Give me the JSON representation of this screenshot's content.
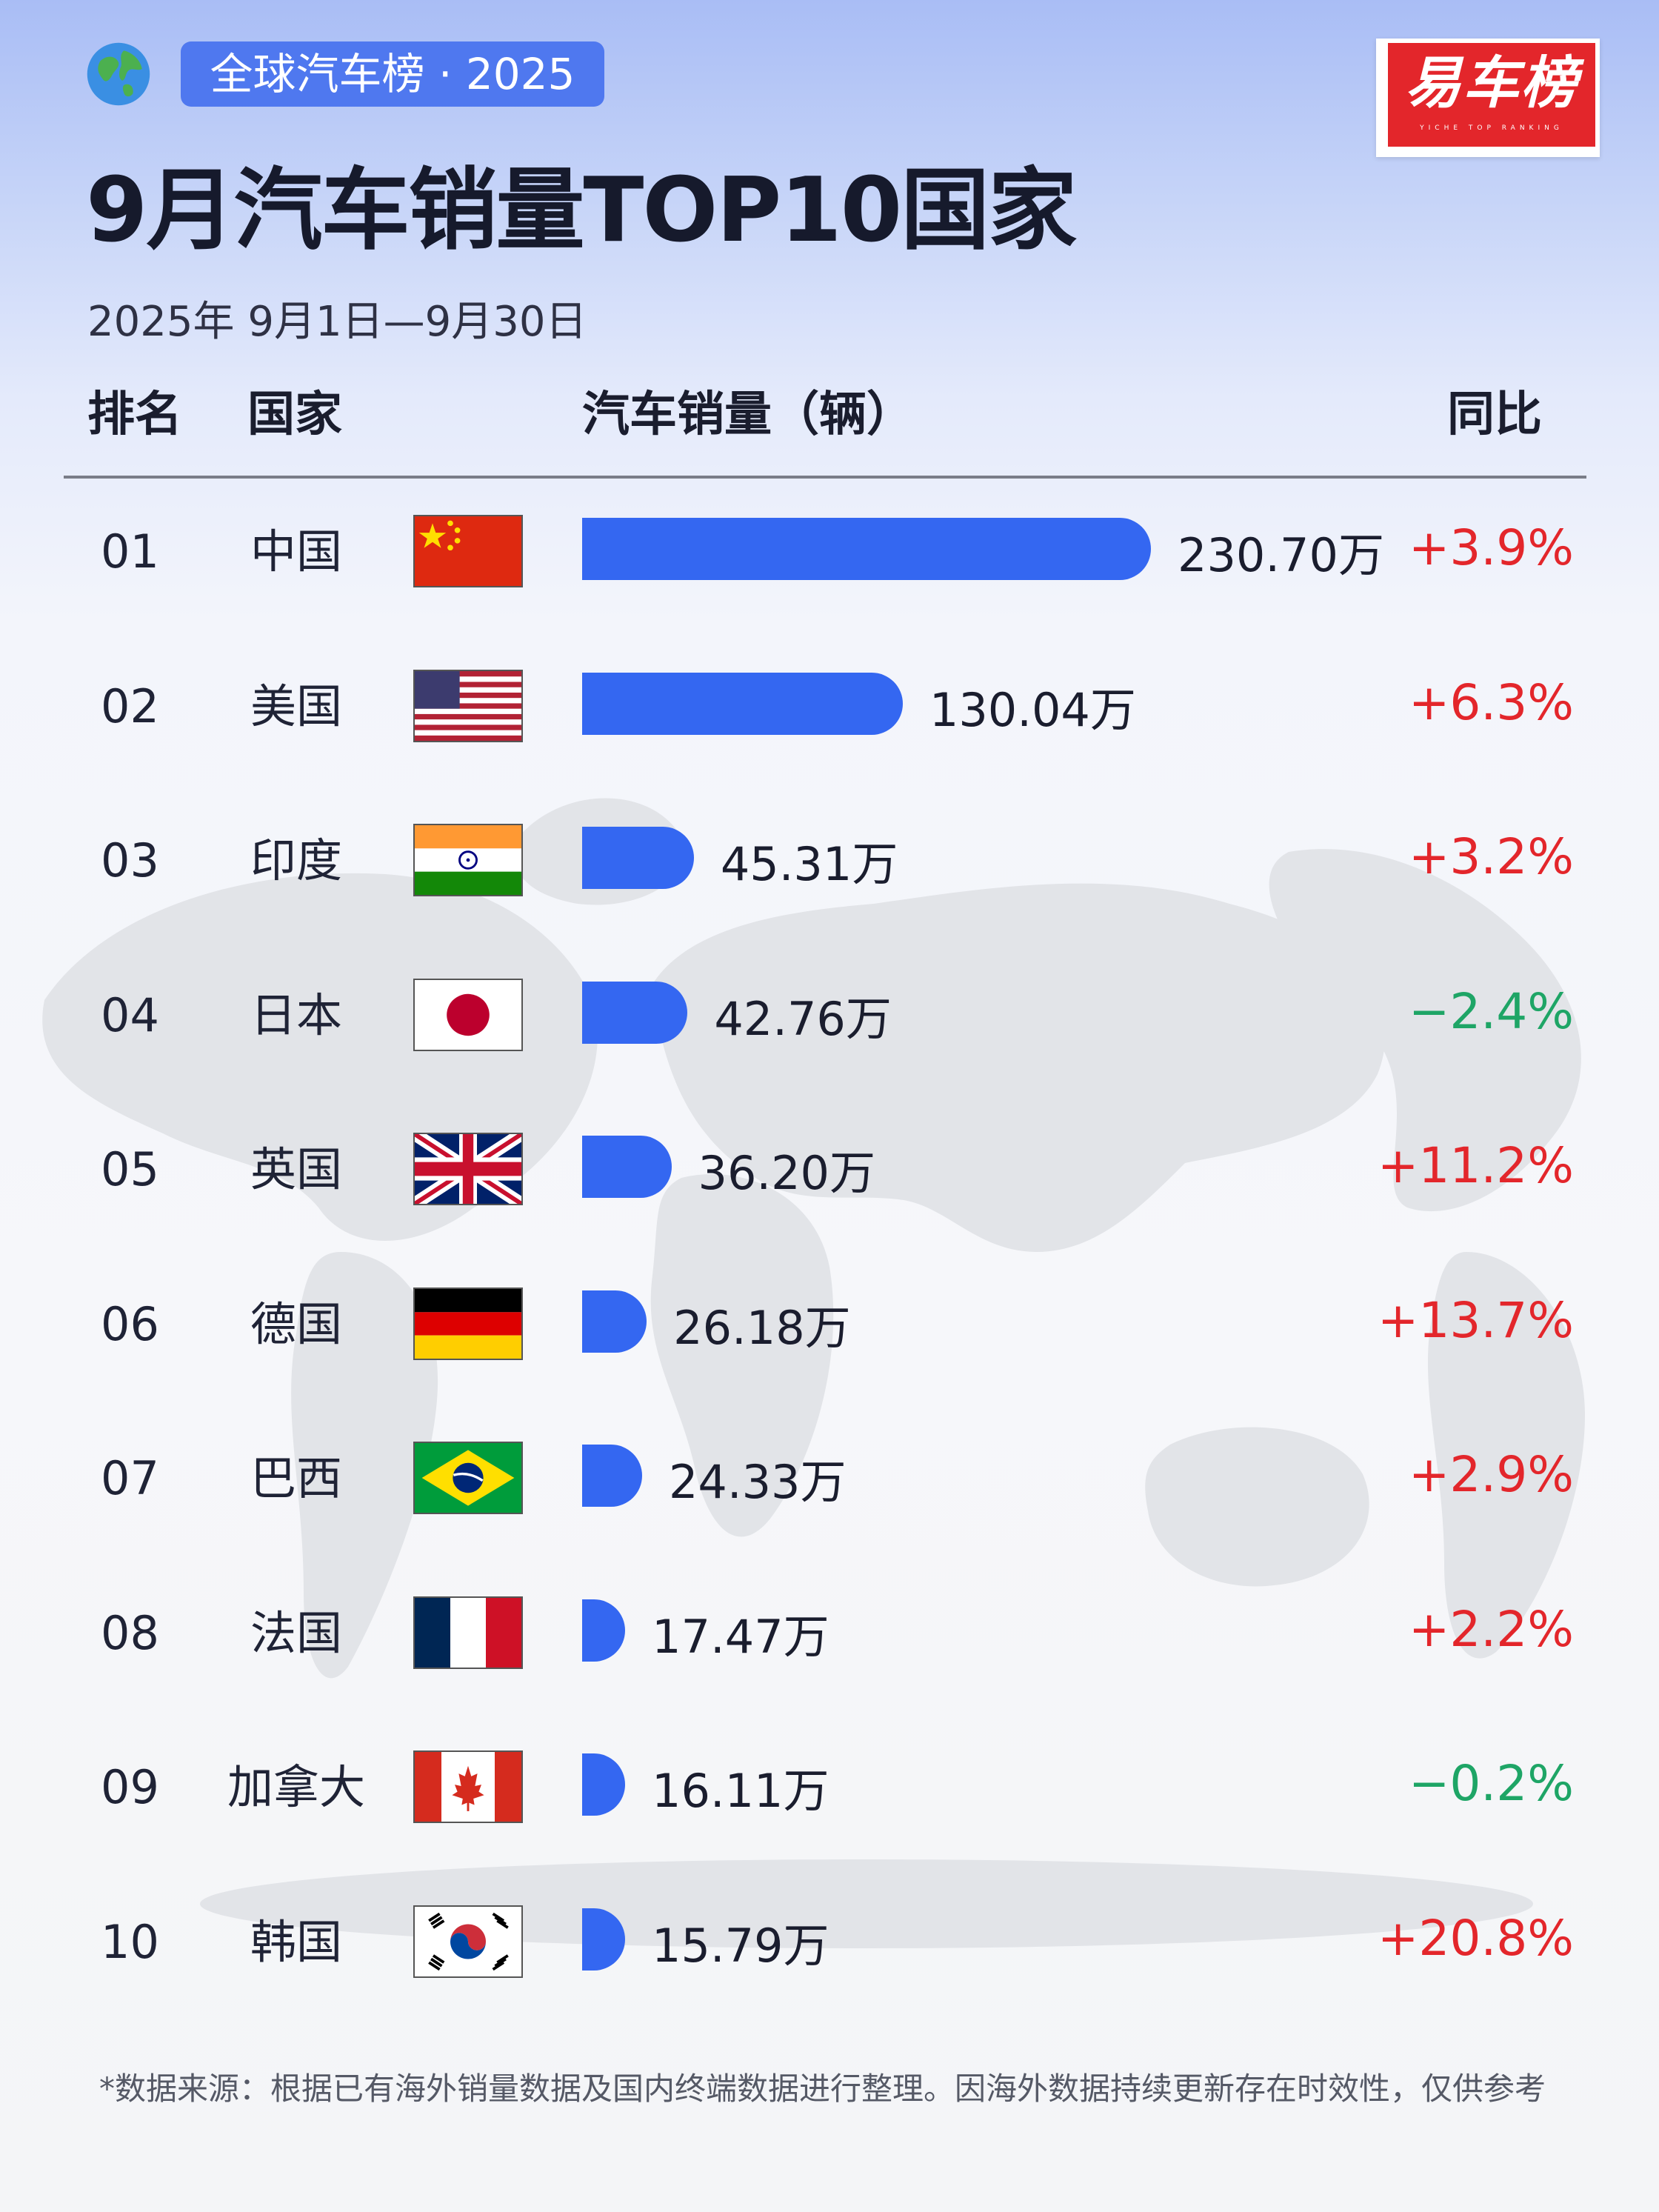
{
  "header": {
    "badge": "全球汽车榜 · 2025",
    "logo": "易车榜",
    "logo_sub": "YICHE TOP RANKING",
    "title": "9月汽车销量TOP10国家",
    "date_range": "2025年 9月1日—9月30日"
  },
  "columns": {
    "rank": "排名",
    "country": "国家",
    "sales": "汽车销量（辆）",
    "yoy": "同比"
  },
  "chart_data": {
    "type": "bar",
    "orientation": "horizontal",
    "unit": "万",
    "categories": [
      "中国",
      "美国",
      "印度",
      "日本",
      "英国",
      "德国",
      "巴西",
      "法国",
      "加拿大",
      "韩国"
    ],
    "ranks": [
      "01",
      "02",
      "03",
      "04",
      "05",
      "06",
      "07",
      "08",
      "09",
      "10"
    ],
    "values": [
      230.7,
      130.04,
      45.31,
      42.76,
      36.2,
      26.18,
      24.33,
      17.47,
      16.11,
      15.79
    ],
    "labels": [
      "230.70万",
      "130.04万",
      "45.31万",
      "42.76万",
      "36.20万",
      "26.18万",
      "24.33万",
      "17.47万",
      "16.11万",
      "15.79万"
    ],
    "yoy": [
      "+3.9%",
      "+6.3%",
      "+3.2%",
      "−2.4%",
      "+11.2%",
      "+13.7%",
      "+2.9%",
      "+2.2%",
      "−0.2%",
      "+20.8%"
    ],
    "yoy_values": [
      3.9,
      6.3,
      3.2,
      -2.4,
      11.2,
      13.7,
      2.9,
      2.2,
      -0.2,
      20.8
    ],
    "flags": [
      "china-flag",
      "usa-flag",
      "india-flag",
      "japan-flag",
      "uk-flag",
      "germany-flag",
      "brazil-flag",
      "france-flag",
      "canada-flag",
      "korea-flag"
    ],
    "colors": {
      "bar": "#3467f1",
      "positive": "#e3262b",
      "negative": "#1ea566"
    }
  },
  "footnote": "*数据来源：根据已有海外销量数据及国内终端数据进行整理。因海外数据持续更新存在时效性，仅供参考"
}
